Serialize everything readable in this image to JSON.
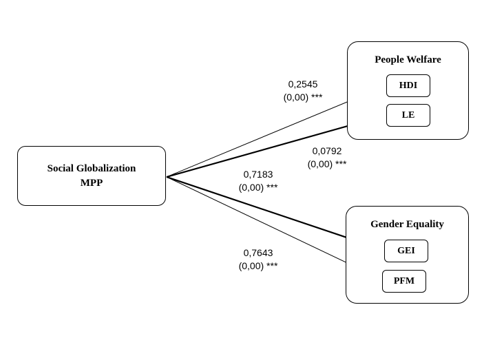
{
  "source": {
    "line1": "Social Globalization",
    "line2": "MPP"
  },
  "groups": {
    "people_welfare": {
      "title": "People Welfare",
      "items": [
        "HDI",
        "LE"
      ]
    },
    "gender_equality": {
      "title": "Gender Equality",
      "items": [
        "GEI",
        "PFM"
      ]
    }
  },
  "paths": [
    {
      "target": "HDI",
      "coef": "0,2545",
      "sig": "(0,00) ***"
    },
    {
      "target": "LE",
      "coef": "0,0792",
      "sig": "(0,00) ***"
    },
    {
      "target": "GEI",
      "coef": "0,7183",
      "sig": "(0,00) ***"
    },
    {
      "target": "PFM",
      "coef": "0,7643",
      "sig": "(0,00) ***"
    }
  ]
}
